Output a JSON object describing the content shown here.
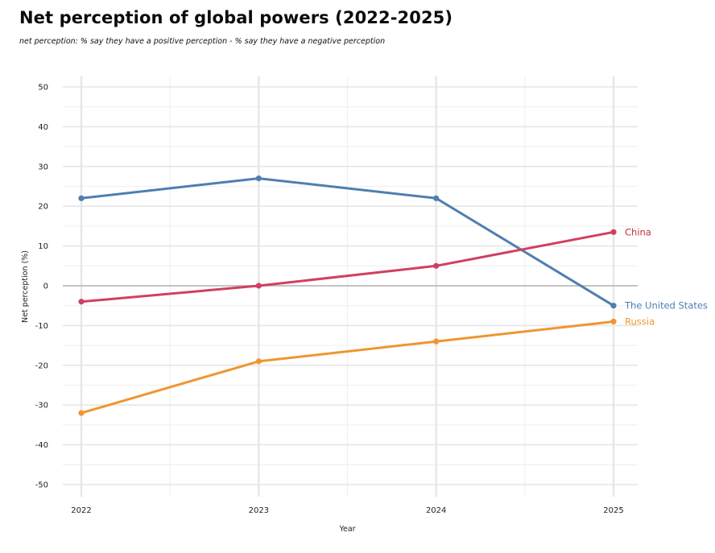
{
  "header": {
    "title": "Net perception of global powers (2022-2025)",
    "subtitle": "net perception: % say they have a positive perception - % say they have a negative perception"
  },
  "chart_data": {
    "type": "line",
    "title": "Net perception of global powers (2022-2025)",
    "subtitle": "net perception: % say they have a positive perception - % say they have a negative perception",
    "xlabel": "Year",
    "ylabel": "Net perception (%)",
    "x": [
      2022,
      2023,
      2024,
      2025
    ],
    "x_tick_labels": [
      "2022",
      "2023",
      "2024",
      "2025"
    ],
    "xlim": [
      2022,
      2025
    ],
    "ylim": [
      -50,
      50
    ],
    "y_ticks": [
      50,
      40,
      30,
      20,
      10,
      0,
      -10,
      -20,
      -30,
      -40,
      -50
    ],
    "y_tick_labels": [
      "50",
      "40",
      "30",
      "20",
      "10",
      "0",
      "-10",
      "-20",
      "-30",
      "-40",
      "-50"
    ],
    "grid": true,
    "zero_line": true,
    "legend": "direct labels at line ends (right)",
    "series": [
      {
        "name": "The United States",
        "color": "#4e7fb0",
        "values": [
          22,
          27,
          22,
          -5
        ]
      },
      {
        "name": "China",
        "color": "#d0405f",
        "values": [
          -4,
          0,
          5,
          13.5
        ]
      },
      {
        "name": "Russia",
        "color": "#ef9630",
        "values": [
          -32,
          -19,
          -14,
          -9
        ]
      }
    ],
    "label_colors": {
      "The United States": "#4e7fb0",
      "China": "#c0303a",
      "Russia": "#ef9630"
    }
  }
}
